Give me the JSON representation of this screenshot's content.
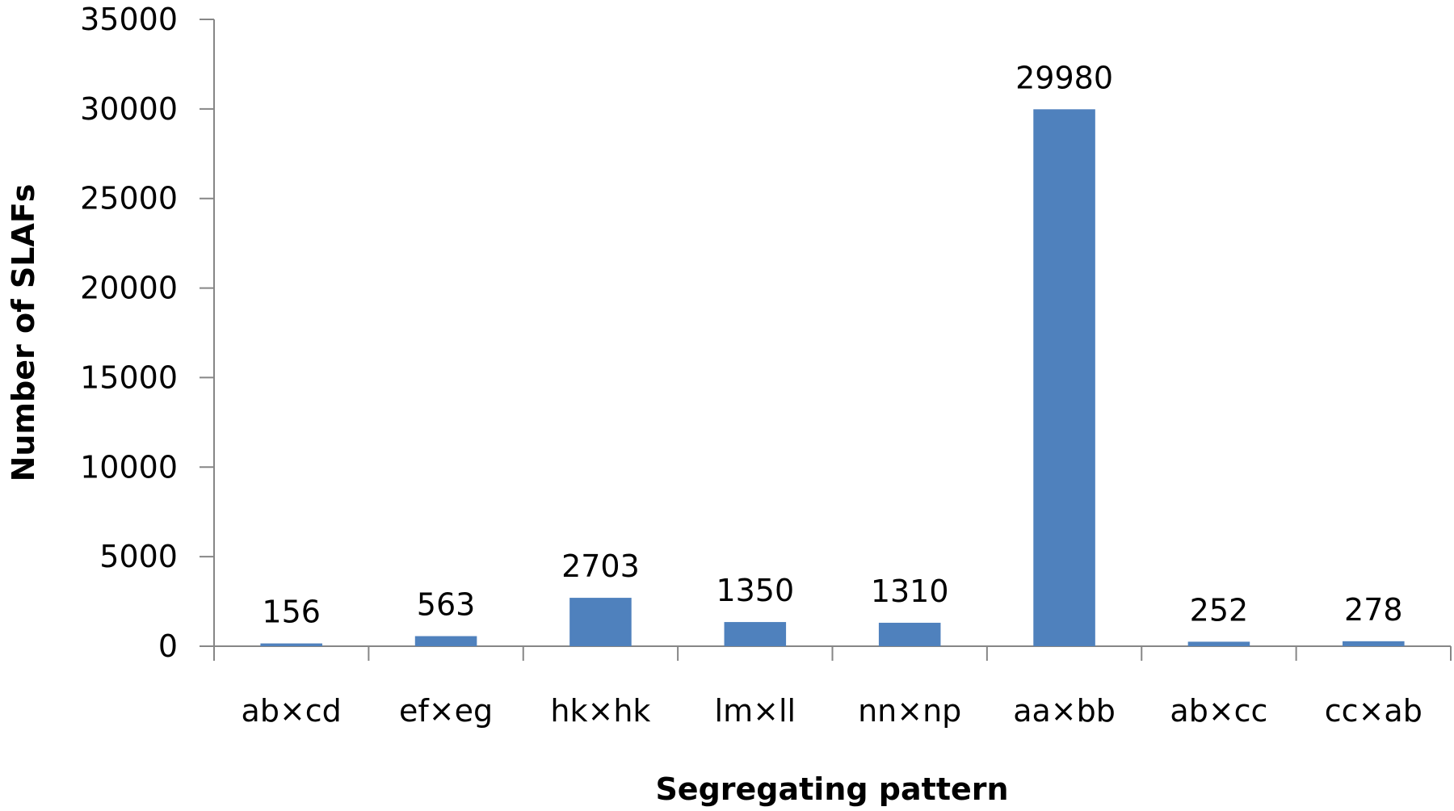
{
  "chart_data": {
    "type": "bar",
    "categories": [
      "ab×cd",
      "ef×eg",
      "hk×hk",
      "lm×ll",
      "nn×np",
      "aa×bb",
      "ab×cc",
      "cc×ab"
    ],
    "values": [
      156,
      563,
      2703,
      1350,
      1310,
      29980,
      252,
      278
    ],
    "data_labels": [
      "156",
      "563",
      "2703",
      "1350",
      "1310",
      "29980",
      "252",
      "278"
    ],
    "xlabel": "Segregating pattern",
    "ylabel": "Number of SLAFs",
    "ylim": [
      0,
      35000
    ],
    "yticks": [
      "0",
      "5000",
      "10000",
      "15000",
      "20000",
      "25000",
      "30000",
      "35000"
    ],
    "grid": false,
    "legend": "none",
    "bar_color": "#4f81bd"
  }
}
